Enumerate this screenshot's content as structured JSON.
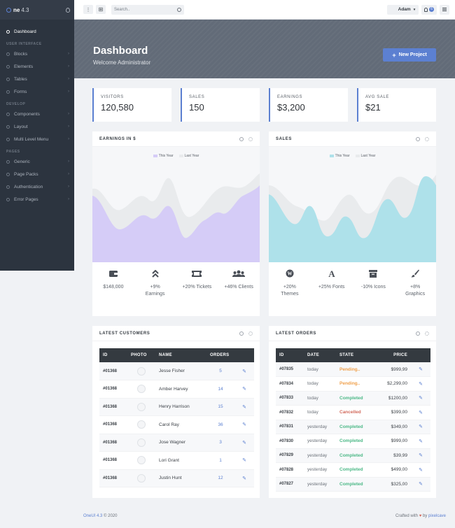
{
  "brand": {
    "name": "ne",
    "version": "4.3"
  },
  "sidebar": {
    "items": [
      {
        "label": "Dashboard",
        "section": null,
        "chevron": false,
        "active": true
      },
      {
        "section_label": "USER INTERFACE"
      },
      {
        "label": "Blocks",
        "chevron": true
      },
      {
        "label": "Elements",
        "chevron": true
      },
      {
        "label": "Tables",
        "chevron": true
      },
      {
        "label": "Forms",
        "chevron": true
      },
      {
        "section_label": "DEVELOP"
      },
      {
        "label": "Components",
        "chevron": true
      },
      {
        "label": "Layout",
        "chevron": true
      },
      {
        "label": "Multi Level Menu",
        "chevron": true
      },
      {
        "section_label": "PAGES"
      },
      {
        "label": "Generic",
        "chevron": true
      },
      {
        "label": "Page Packs",
        "chevron": true
      },
      {
        "label": "Authentication",
        "chevron": true
      },
      {
        "label": "Error Pages",
        "chevron": true
      }
    ]
  },
  "topbar": {
    "search_placeholder": "Search..",
    "user_name": "Adam",
    "notification_count": "6"
  },
  "hero": {
    "title": "Dashboard",
    "subtitle": "Welcome Administrator",
    "new_project_label": "New Project"
  },
  "stats": [
    {
      "label": "VISITORS",
      "value": "120,580"
    },
    {
      "label": "SALES",
      "value": "150"
    },
    {
      "label": "EARNINGS",
      "value": "$3,200"
    },
    {
      "label": "AVG SALE",
      "value": "$21"
    }
  ],
  "earnings_card": {
    "title": "EARNINGS IN $",
    "legend_this_year": "This Year",
    "legend_last_year": "Last Year",
    "kpis": [
      {
        "icon": "wallet-icon",
        "text": "$148,000"
      },
      {
        "icon": "double-chevron-up-icon",
        "text": "+9%\nEarnings"
      },
      {
        "icon": "ticket-icon",
        "text": "+20% Tickets"
      },
      {
        "icon": "users-icon",
        "text": "+46% Clients"
      }
    ]
  },
  "sales_card": {
    "title": "SALES",
    "legend_this_year": "This Year",
    "legend_last_year": "Last Year",
    "kpis": [
      {
        "icon": "wordpress-icon",
        "text": "+20%\nThemes"
      },
      {
        "icon": "font-icon",
        "text": "+25% Fonts"
      },
      {
        "icon": "archive-icon",
        "text": "-10% Icons"
      },
      {
        "icon": "paint-brush-icon",
        "text": "+8%\nGraphics"
      }
    ]
  },
  "colors": {
    "accent": "#5c80d1",
    "sidebar_bg": "#2c343f",
    "earnings_this_year": "#d5ccf7",
    "sales_this_year": "#aee1ea",
    "last_year": "#e9ebed",
    "pending": "#f0a04b",
    "completed": "#4bb886",
    "cancelled": "#d26a5c"
  },
  "customers": {
    "title": "LATEST CUSTOMERS",
    "columns": [
      "ID",
      "PHOTO",
      "NAME",
      "ORDERS"
    ],
    "rows": [
      {
        "id": "#01368",
        "name": "Jesse Fisher",
        "orders": "5"
      },
      {
        "id": "#01368",
        "name": "Amber Harvey",
        "orders": "14"
      },
      {
        "id": "#01368",
        "name": "Henry Harrison",
        "orders": "15"
      },
      {
        "id": "#01368",
        "name": "Carol Ray",
        "orders": "36"
      },
      {
        "id": "#01368",
        "name": "Jose Wagner",
        "orders": "3"
      },
      {
        "id": "#01368",
        "name": "Lori Grant",
        "orders": "1"
      },
      {
        "id": "#01368",
        "name": "Justin Hunt",
        "orders": "12"
      }
    ]
  },
  "orders": {
    "title": "LATEST ORDERS",
    "columns": [
      "ID",
      "DATE",
      "STATE",
      "PRICE"
    ],
    "rows": [
      {
        "id": "#07835",
        "date": "today",
        "state": "Pending..",
        "status": "pending",
        "price": "$999,99"
      },
      {
        "id": "#07834",
        "date": "today",
        "state": "Pending..",
        "status": "pending",
        "price": "$2,299,00"
      },
      {
        "id": "#07833",
        "date": "today",
        "state": "Completed",
        "status": "completed",
        "price": "$1200,00"
      },
      {
        "id": "#07832",
        "date": "today",
        "state": "Cancelled",
        "status": "cancelled",
        "price": "$399,00"
      },
      {
        "id": "#07831",
        "date": "yesterday",
        "state": "Completed",
        "status": "completed",
        "price": "$349,00"
      },
      {
        "id": "#07830",
        "date": "yesterday",
        "state": "Completed",
        "status": "completed",
        "price": "$999,00"
      },
      {
        "id": "#07829",
        "date": "yesterday",
        "state": "Completed",
        "status": "completed",
        "price": "$39,99"
      },
      {
        "id": "#07828",
        "date": "yesterday",
        "state": "Completed",
        "status": "completed",
        "price": "$499,00"
      },
      {
        "id": "#07827",
        "date": "yesterday",
        "state": "Completed",
        "status": "completed",
        "price": "$325,00"
      }
    ]
  },
  "footer": {
    "product": "OneUI 4.3",
    "copyright": "© 2020",
    "crafted_prefix": "Crafted with",
    "crafted_by": "by",
    "company": "pixelcave"
  }
}
